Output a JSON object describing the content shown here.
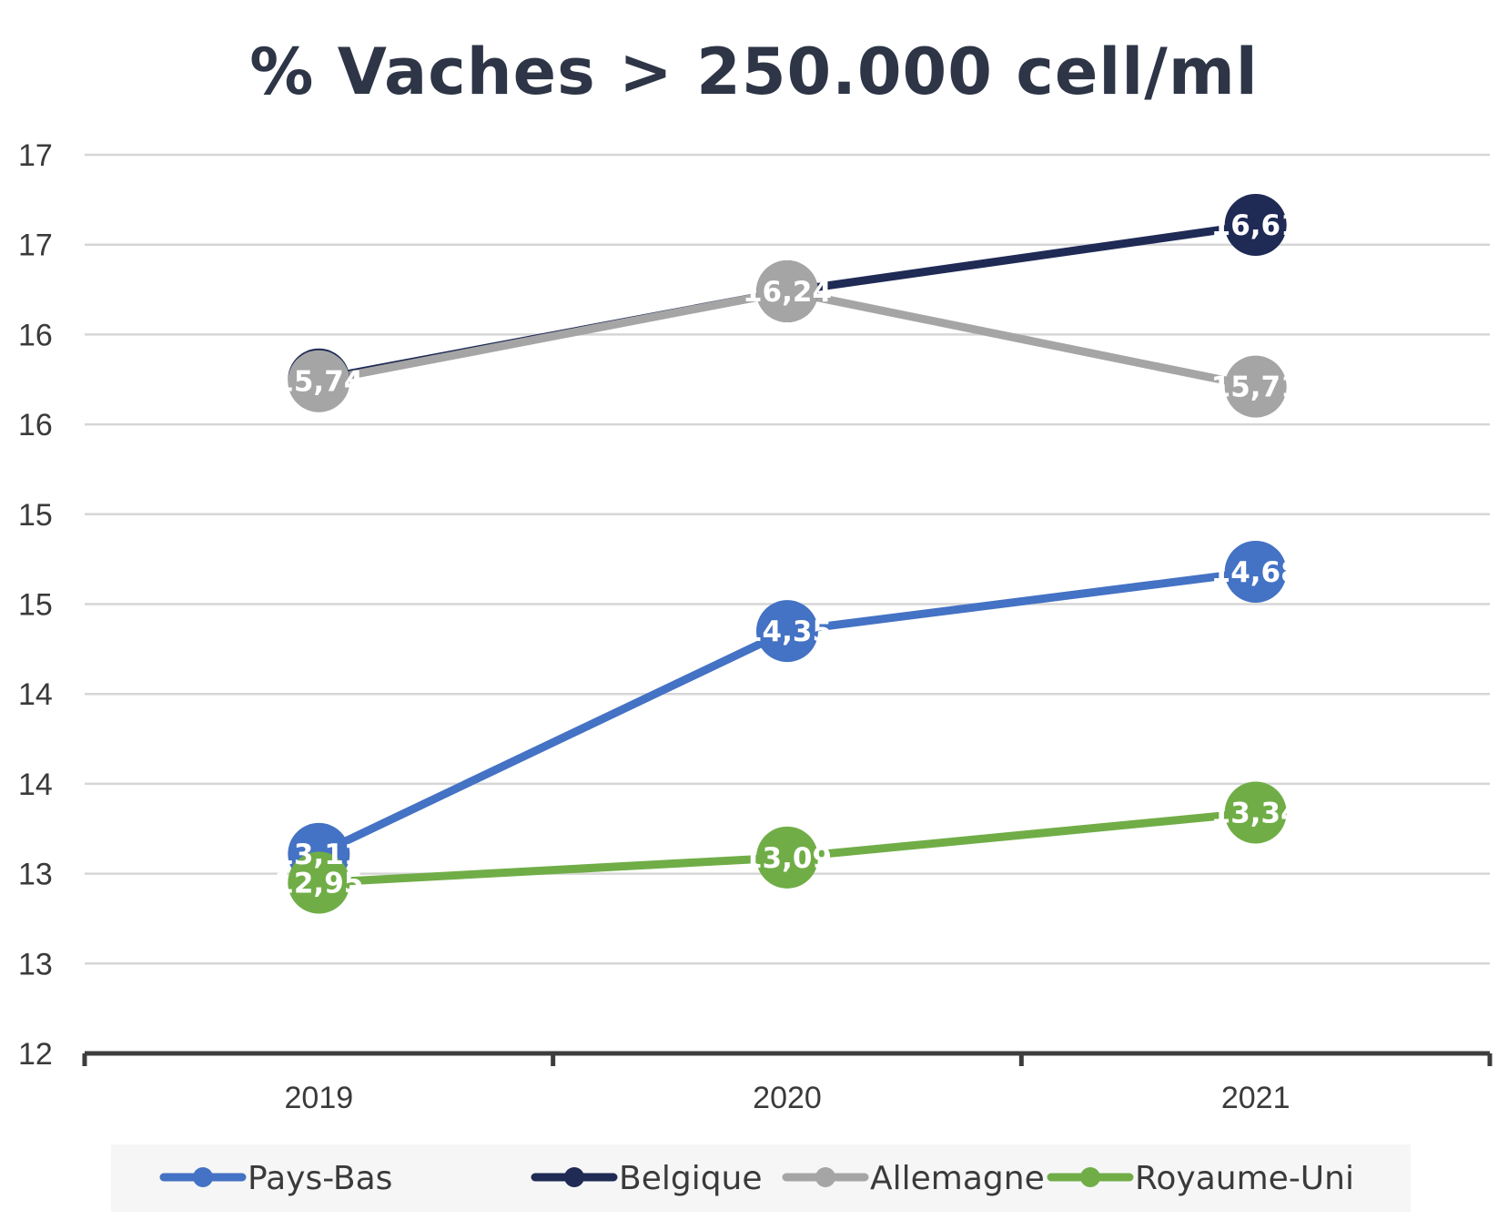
{
  "chart_data": {
    "type": "line",
    "title": "% Vaches > 250.000 cell/ml",
    "xlabel": "",
    "ylabel": "",
    "categories": [
      "2019",
      "2020",
      "2021"
    ],
    "ylim": [
      12,
      17
    ],
    "y_tick_labels": [
      "12",
      "13",
      "13",
      "14",
      "14",
      "15",
      "15",
      "16",
      "16",
      "17",
      "17"
    ],
    "grid": true,
    "legend_position": "bottom",
    "series": [
      {
        "name": "Pays-Bas",
        "color": "#4472c4",
        "values": [
          13.11,
          14.35,
          14.68
        ],
        "labels": [
          "13,11",
          "14,35",
          "14,68"
        ]
      },
      {
        "name": "Belgique",
        "color": "#1f2a55",
        "values": [
          15.75,
          16.24,
          16.61
        ],
        "labels": [
          "",
          "",
          "16,61"
        ]
      },
      {
        "name": "Allemagne",
        "color": "#a5a5a5",
        "values": [
          15.74,
          16.24,
          15.71
        ],
        "labels": [
          "15,74",
          "16,24",
          "15,71"
        ]
      },
      {
        "name": "Royaume-Uni",
        "color": "#70ad47",
        "values": [
          12.95,
          13.09,
          13.34
        ],
        "labels": [
          "12,95",
          "13,09",
          "13,34"
        ]
      }
    ]
  }
}
